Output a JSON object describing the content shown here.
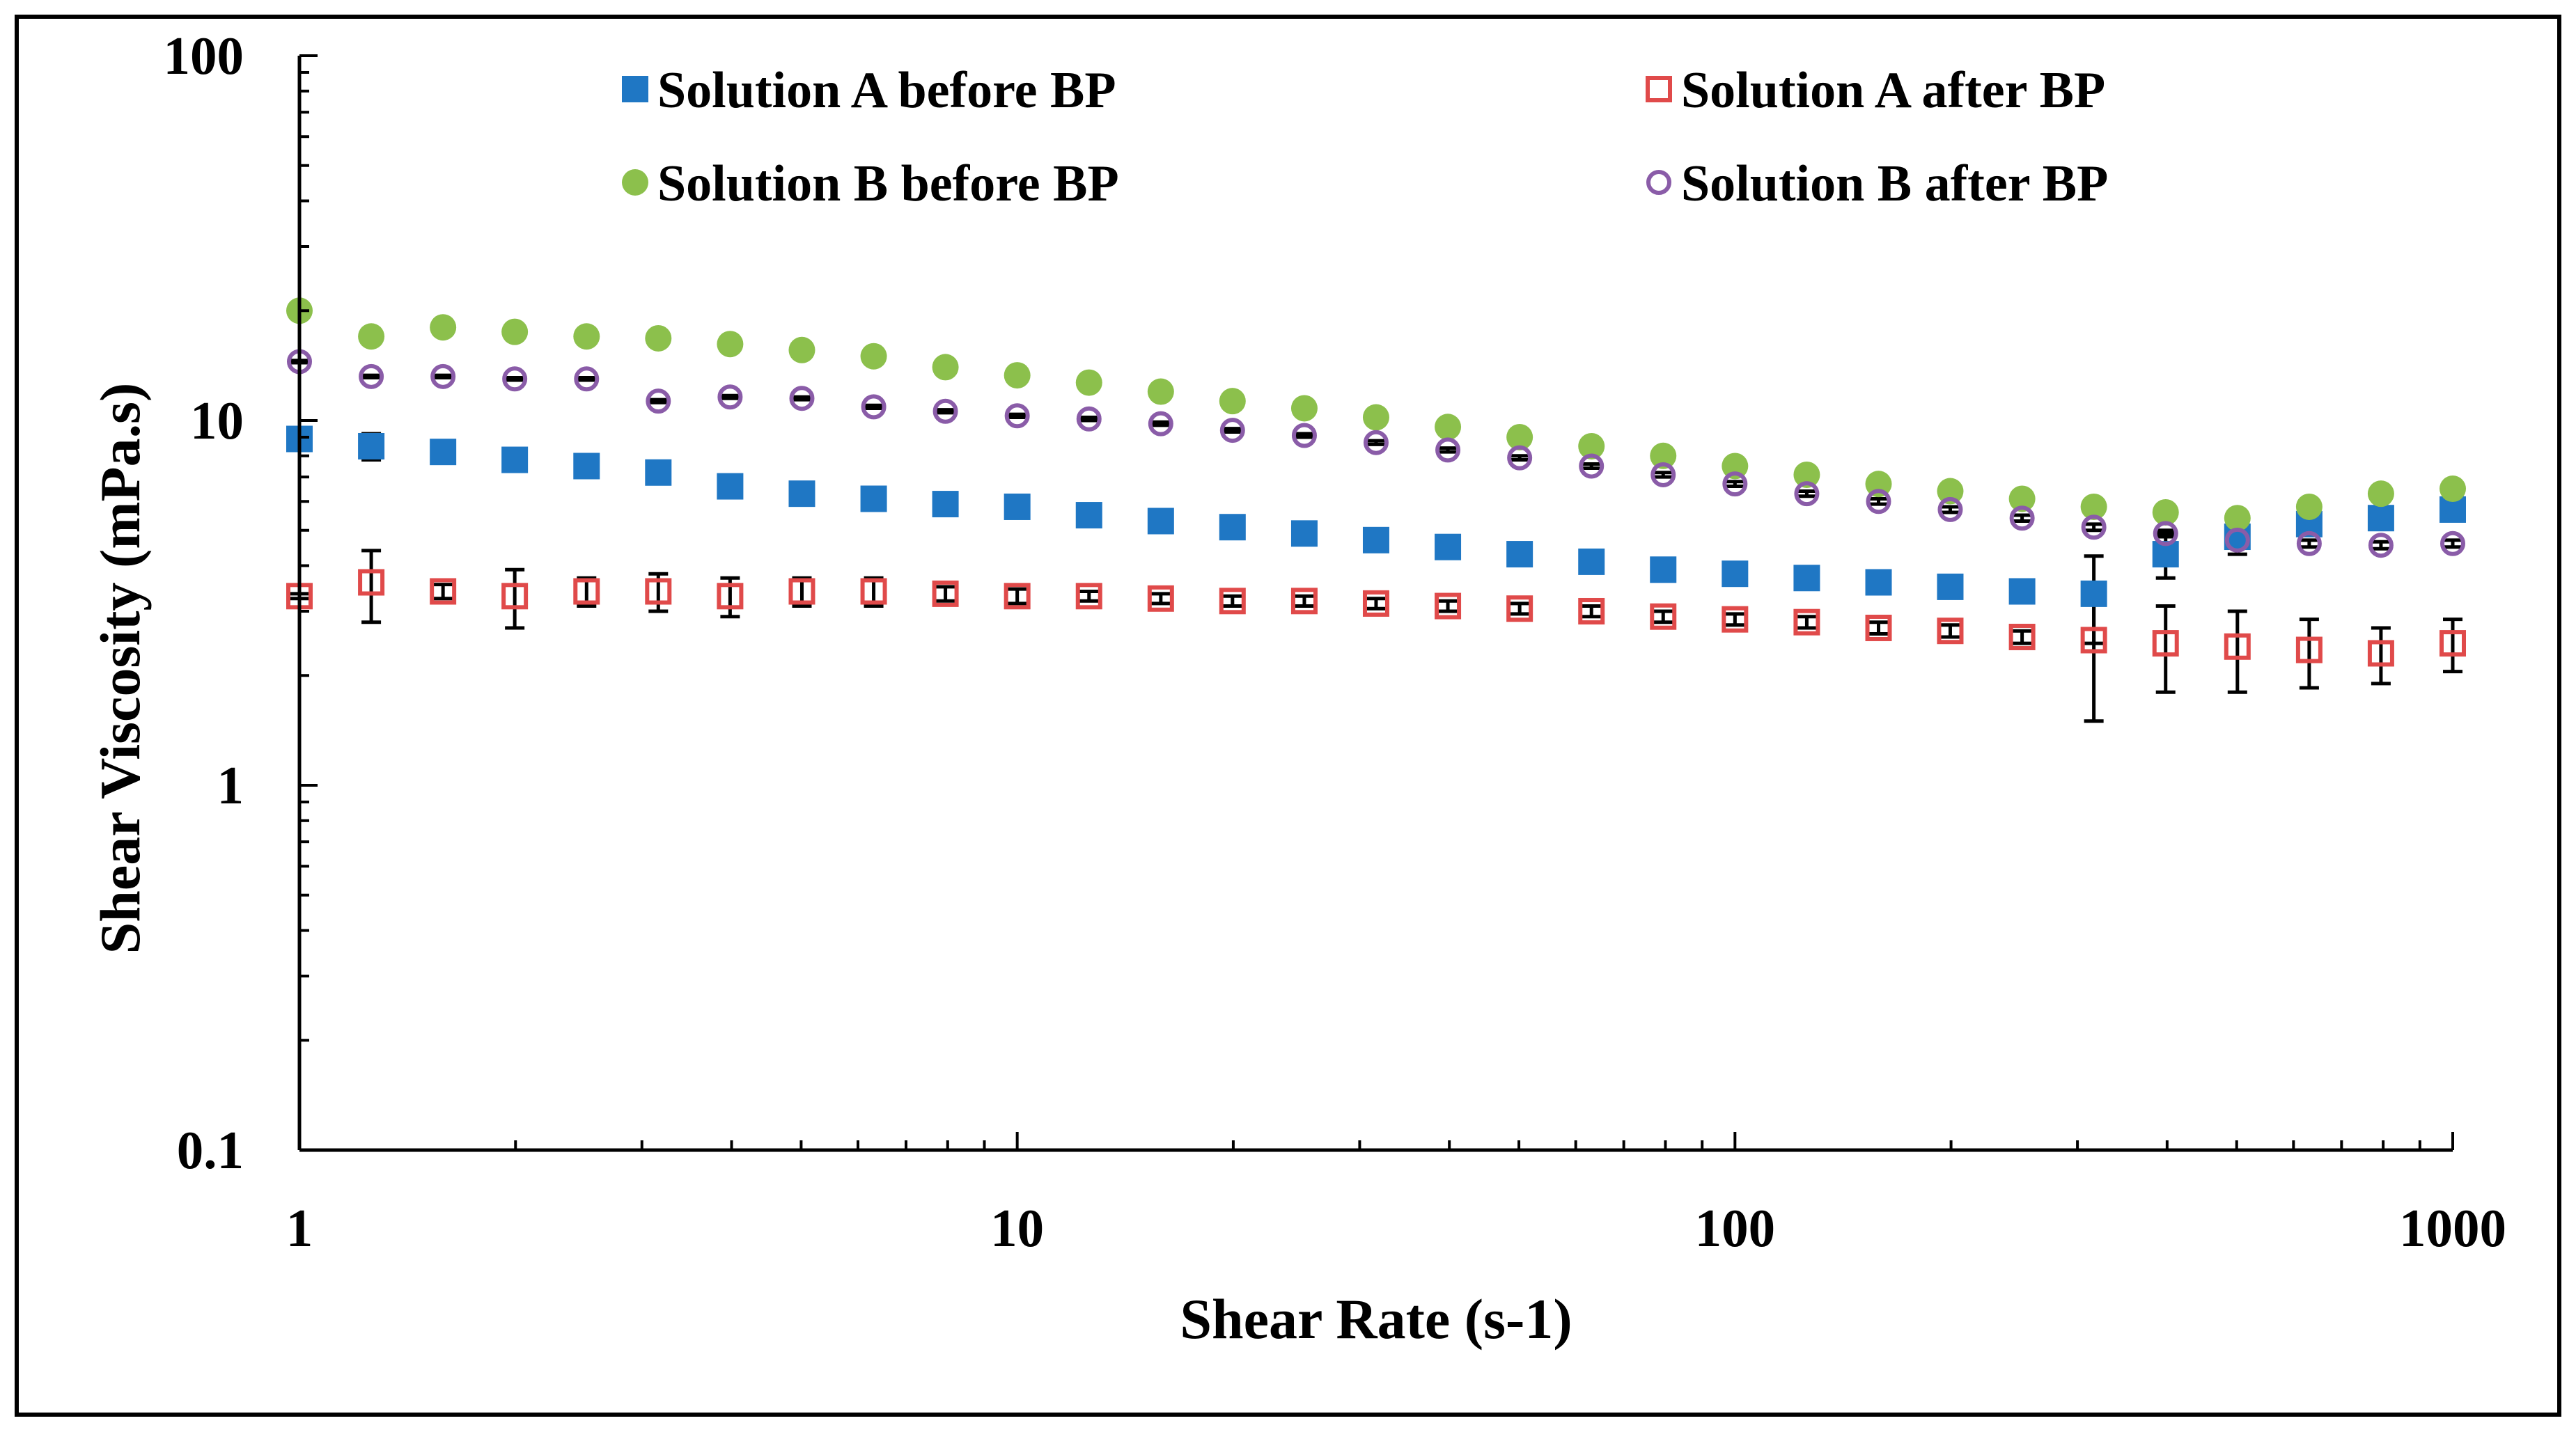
{
  "chart_data": {
    "type": "scatter",
    "title": "",
    "xlabel": "Shear Rate (s-1)",
    "ylabel": "Shear Viscosity (mPa.s)",
    "xscale": "log",
    "yscale": "log",
    "xlim": [
      1,
      1000
    ],
    "ylim": [
      0.1,
      100
    ],
    "x_ticks": [
      1,
      10,
      100,
      1000
    ],
    "x_tick_labels": [
      "1",
      "10",
      "100",
      "1000"
    ],
    "y_ticks": [
      0.1,
      1,
      10,
      100
    ],
    "y_tick_labels": [
      "0.1",
      "1",
      "10",
      "100"
    ],
    "grid": false,
    "legend_position": "top",
    "x": [
      1,
      1.259,
      1.585,
      1.995,
      2.512,
      3.162,
      3.981,
      5.012,
      6.31,
      7.943,
      10,
      12.59,
      15.85,
      19.95,
      25.12,
      31.62,
      39.81,
      50.12,
      63.1,
      79.43,
      100,
      125.9,
      158.5,
      199.5,
      251.2,
      316.2,
      398.1,
      501.2,
      631,
      794.3,
      1000
    ],
    "series": [
      {
        "name": "Solution A before BP",
        "marker": "filled-square",
        "color": "#1f77c4",
        "values": [
          8.9,
          8.5,
          8.2,
          7.8,
          7.5,
          7.2,
          6.6,
          6.3,
          6.1,
          5.9,
          5.8,
          5.5,
          5.3,
          5.1,
          4.9,
          4.7,
          4.5,
          4.3,
          4.1,
          3.9,
          3.8,
          3.7,
          3.6,
          3.5,
          3.4,
          3.35,
          4.3,
          4.8,
          5.2,
          5.4,
          5.7
        ],
        "error": [
          0.1,
          0.7,
          0.15,
          0.15,
          0.12,
          0.12,
          0.1,
          0.1,
          0.1,
          0.1,
          0.1,
          0.1,
          0.1,
          0.08,
          0.08,
          0.08,
          0.08,
          0.08,
          0.08,
          0.08,
          0.08,
          0.08,
          0.08,
          0.08,
          0.08,
          0.9,
          0.6,
          0.5,
          0.3,
          0.3,
          0.3
        ]
      },
      {
        "name": "Solution A after BP",
        "marker": "open-square",
        "color": "#e04a4a",
        "values": [
          3.3,
          3.6,
          3.4,
          3.3,
          3.4,
          3.4,
          3.3,
          3.4,
          3.4,
          3.35,
          3.3,
          3.3,
          3.25,
          3.2,
          3.2,
          3.15,
          3.1,
          3.05,
          3.0,
          2.9,
          2.85,
          2.8,
          2.7,
          2.65,
          2.55,
          2.5,
          2.45,
          2.4,
          2.35,
          2.3,
          2.45
        ],
        "error": [
          0.05,
          0.8,
          0.15,
          0.6,
          0.3,
          0.4,
          0.4,
          0.3,
          0.3,
          0.15,
          0.15,
          0.1,
          0.1,
          0.1,
          0.1,
          0.1,
          0.1,
          0.1,
          0.1,
          0.1,
          0.1,
          0.1,
          0.1,
          0.1,
          0.1,
          1.0,
          0.65,
          0.6,
          0.5,
          0.4,
          0.4
        ]
      },
      {
        "name": "Solution B before BP",
        "marker": "filled-circle",
        "color": "#8cc04c",
        "values": [
          20,
          17,
          18,
          17.5,
          17,
          16.8,
          16.2,
          15.6,
          15,
          14,
          13.3,
          12.7,
          12,
          11.3,
          10.8,
          10.2,
          9.6,
          9,
          8.5,
          8,
          7.5,
          7.1,
          6.7,
          6.4,
          6.1,
          5.8,
          5.6,
          5.4,
          5.8,
          6.3,
          6.5
        ],
        "error": [
          0.3,
          0.3,
          0.3,
          0.3,
          0.3,
          0.3,
          0.3,
          0.3,
          0.3,
          0.3,
          0.3,
          0.2,
          0.2,
          0.2,
          0.2,
          0.2,
          0.2,
          0.2,
          0.15,
          0.15,
          0.15,
          0.15,
          0.15,
          0.15,
          0.15,
          0.15,
          0.15,
          0.15,
          0.15,
          0.15,
          0.15
        ]
      },
      {
        "name": "Solution B after BP",
        "marker": "open-circle",
        "color": "#8a5ca8",
        "values": [
          14.5,
          13.2,
          13.2,
          13.0,
          13.0,
          11.3,
          11.6,
          11.5,
          10.9,
          10.6,
          10.3,
          10.1,
          9.8,
          9.4,
          9.1,
          8.7,
          8.3,
          7.9,
          7.5,
          7.1,
          6.7,
          6.3,
          6.0,
          5.7,
          5.4,
          5.1,
          4.9,
          4.7,
          4.6,
          4.55,
          4.6
        ],
        "error": [
          0.1,
          0.1,
          0.1,
          0.1,
          0.1,
          0.1,
          0.1,
          0.1,
          0.1,
          0.1,
          0.1,
          0.1,
          0.1,
          0.1,
          0.1,
          0.1,
          0.1,
          0.1,
          0.1,
          0.1,
          0.1,
          0.1,
          0.1,
          0.1,
          0.1,
          0.1,
          0.1,
          0.1,
          0.1,
          0.1,
          0.1
        ]
      }
    ]
  }
}
